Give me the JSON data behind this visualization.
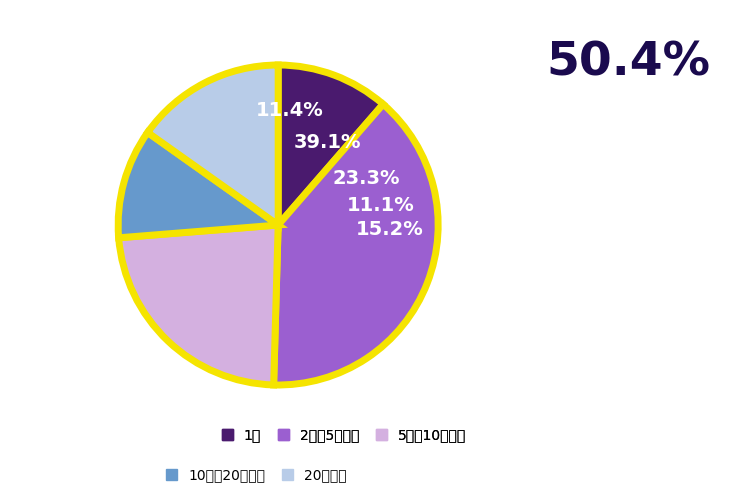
{
  "labels": [
    "1人",
    "2人～5人未満",
    "5人～10人未満",
    "10人～20人未満",
    "20人以上"
  ],
  "values": [
    11.4,
    39.1,
    23.3,
    11.1,
    15.2
  ],
  "colors": [
    "#4a1a6e",
    "#9b5fd0",
    "#d4b0e0",
    "#6699cc",
    "#b8cce8"
  ],
  "edge_color": "#f5e400",
  "edge_linewidth": 5,
  "pct_labels": [
    "11.4%",
    "39.1%",
    "23.3%",
    "11.1%",
    "15.2%"
  ],
  "pct_radii": [
    0.72,
    0.6,
    0.62,
    0.65,
    0.7
  ],
  "pct_label_color": "#ffffff",
  "pct_label_fontsize": 14,
  "annotation_text": "50.4%",
  "annotation_color": "#1a0a4e",
  "annotation_fontsize": 34,
  "annotation_fontweight": "bold",
  "background_color": "#ffffff",
  "legend_labels": [
    "1人",
    "2人～5人未満",
    "5人～10人未満",
    "10人～20人未満",
    "20人以上"
  ],
  "legend_colors": [
    "#4a1a6e",
    "#9b5fd0",
    "#d4b0e0",
    "#6699cc",
    "#b8cce8"
  ],
  "startangle": 90,
  "figsize": [
    7.32,
    5.0
  ],
  "dpi": 100
}
